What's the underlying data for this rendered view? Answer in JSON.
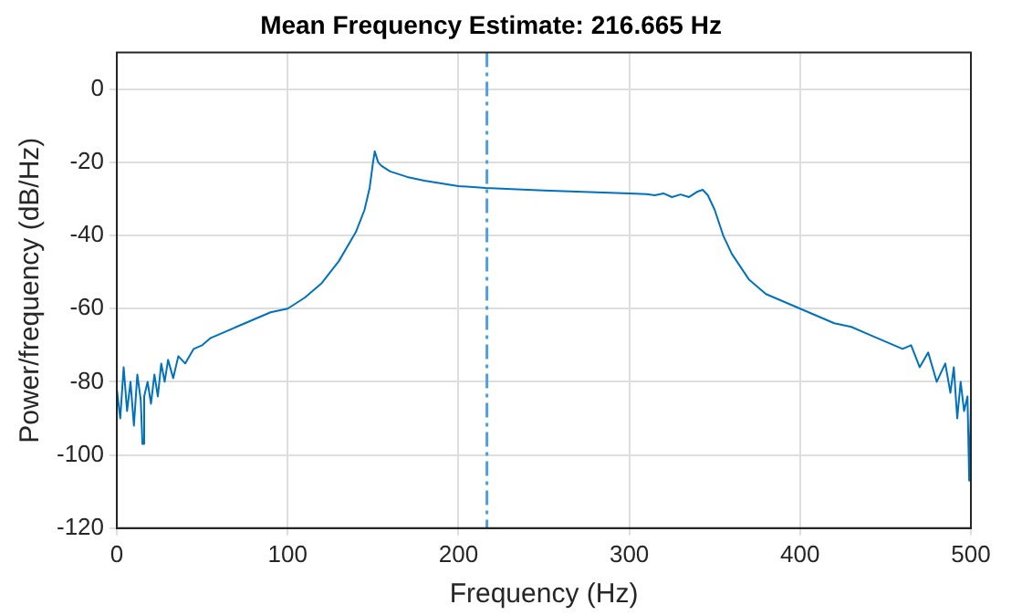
{
  "chart_data": {
    "type": "line",
    "title": "Mean Frequency Estimate: 216.665 Hz",
    "xlabel": "Frequency (Hz)",
    "ylabel": "Power/frequency (dB/Hz)",
    "x": [
      0,
      2,
      4,
      6,
      8,
      10,
      12,
      14,
      15,
      16,
      18,
      20,
      22,
      24,
      26,
      28,
      30,
      33,
      36,
      40,
      45,
      50,
      55,
      60,
      65,
      70,
      80,
      90,
      100,
      110,
      120,
      130,
      140,
      145,
      148,
      150,
      151,
      153,
      155,
      160,
      170,
      180,
      200,
      216,
      250,
      300,
      310,
      315,
      320,
      325,
      330,
      335,
      340,
      343,
      346,
      350,
      355,
      360,
      370,
      380,
      400,
      410,
      420,
      430,
      440,
      450,
      460,
      465,
      470,
      475,
      480,
      485,
      488,
      490,
      492,
      494,
      496,
      498,
      499,
      500
    ],
    "series": [
      {
        "color": "#0072bd",
        "values": [
          -82,
          -90,
          -76,
          -88,
          -80,
          -92,
          -78,
          -85,
          -97,
          -84,
          -80,
          -86,
          -78,
          -84,
          -75,
          -80,
          -74,
          -79,
          -73,
          -75,
          -71,
          -70,
          -68,
          -67,
          -66,
          -65,
          -63,
          -61,
          -60,
          -57,
          -53,
          -47,
          -39,
          -33,
          -27,
          -20,
          -17,
          -20,
          -21,
          -22.5,
          -24,
          -25,
          -26.5,
          -27,
          -27.7,
          -28.5,
          -28.7,
          -29,
          -28.5,
          -29.5,
          -28.8,
          -29.5,
          -28,
          -27.5,
          -29,
          -33,
          -40,
          -45,
          -52,
          -56,
          -60,
          -62,
          -64,
          -65,
          -67,
          -69,
          -71,
          -70,
          -76,
          -72,
          -80,
          -75,
          -83,
          -76,
          -90,
          -80,
          -88,
          -84,
          -107,
          -86
        ]
      }
    ],
    "xlim": [
      0,
      500
    ],
    "xticks": [
      0,
      100,
      200,
      300,
      400,
      500
    ],
    "ylim": [
      -120,
      10
    ],
    "yticks": [
      -120,
      -100,
      -80,
      -60,
      -40,
      -20,
      0
    ],
    "ref_lines": [
      {
        "axis": "x",
        "value": 216.665,
        "color": "#4da0dc",
        "line_style": "dashdot"
      }
    ],
    "grid": true,
    "legend": false,
    "marker": "none",
    "line_style": "solid"
  }
}
